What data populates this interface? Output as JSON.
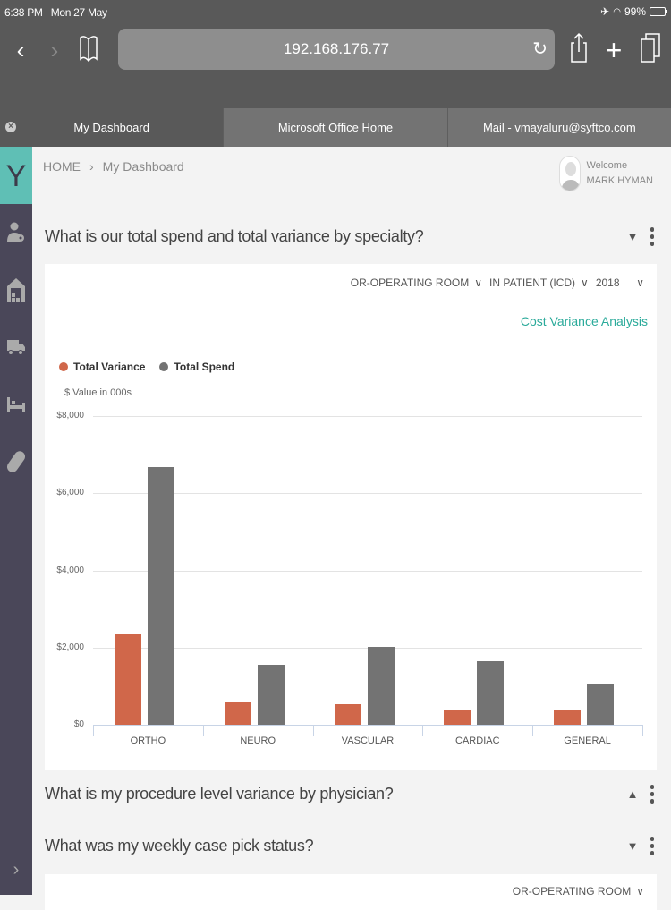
{
  "status_bar": {
    "time": "6:38 PM",
    "date": "Mon 27 May",
    "battery": "99%"
  },
  "browser": {
    "url": "192.168.176.77",
    "tabs": [
      {
        "label": "My Dashboard",
        "active": true
      },
      {
        "label": "Microsoft Office Home",
        "active": false
      },
      {
        "label": "Mail - vmayaluru@syftco.com",
        "active": false
      }
    ]
  },
  "app": {
    "logo": "Y",
    "sidebar": {
      "items": [
        {
          "icon": "user-settings-icon"
        },
        {
          "icon": "warehouse-icon"
        },
        {
          "icon": "truck-icon"
        },
        {
          "icon": "bed-icon"
        },
        {
          "icon": "pill-icon"
        }
      ],
      "expand": "›"
    },
    "breadcrumb": {
      "home": "HOME",
      "separator": "›",
      "current": "My Dashboard"
    },
    "user": {
      "greeting": "Welcome",
      "name": "MARK HYMAN"
    }
  },
  "sections": [
    {
      "question": "What is our total spend and total variance by specialty?",
      "expanded": true,
      "filters": [
        "OR-OPERATING ROOM",
        "IN PATIENT (ICD)",
        "2018"
      ],
      "link": "Cost Variance Analysis"
    },
    {
      "question": "What is my procedure level variance by physician?",
      "expanded": false
    },
    {
      "question": "What was my weekly case pick status?",
      "expanded": true,
      "filters": [
        "OR-OPERATING ROOM"
      ]
    }
  ],
  "colors": {
    "variance": "#d0674a",
    "spend": "#737373",
    "accent": "#5fbfb5",
    "link": "#2aaa9a",
    "sidebar": "#4a4759"
  },
  "chart_data": {
    "type": "bar",
    "title": "What is our total spend and total variance by specialty?",
    "ylabel": "$ Value in 000s",
    "xlabel": "",
    "categories": [
      "ORTHO",
      "NEURO",
      "VASCULAR",
      "CARDIAC",
      "GENERAL"
    ],
    "series": [
      {
        "name": "Total Variance",
        "color": "#d0674a",
        "values": [
          2340,
          580,
          530,
          370,
          370
        ]
      },
      {
        "name": "Total Spend",
        "color": "#737373",
        "values": [
          6680,
          1550,
          2020,
          1650,
          1070
        ]
      }
    ],
    "yticks": [
      "$0",
      "$2,000",
      "$4,000",
      "$6,000",
      "$8,000"
    ],
    "ylim": [
      0,
      8000
    ],
    "grid": true,
    "legend_position": "top-left"
  }
}
